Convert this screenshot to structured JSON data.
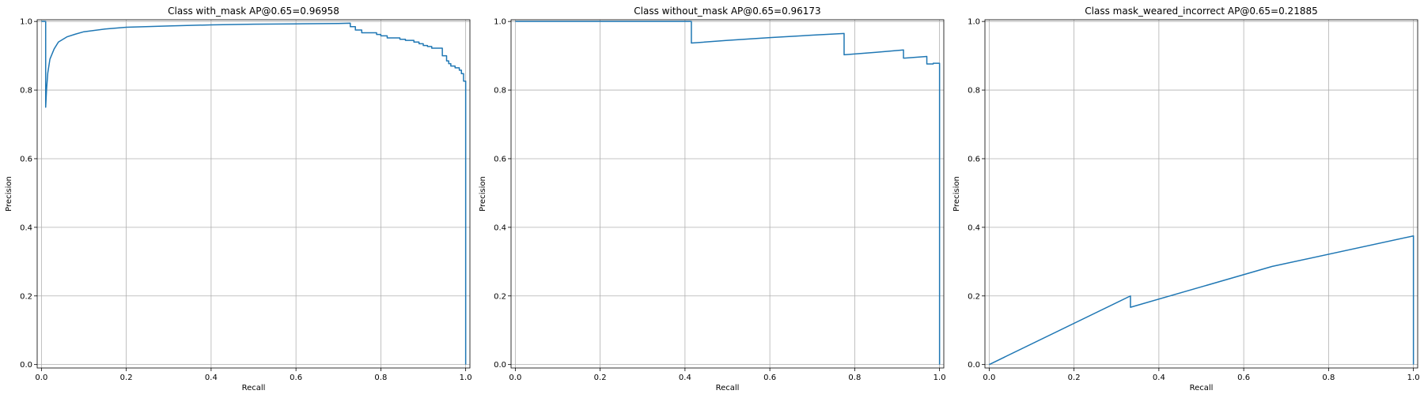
{
  "chart_data": [
    {
      "type": "line",
      "title": "Class with_mask AP@0.65=0.96958",
      "xlabel": "Recall",
      "ylabel": "Precision",
      "xlim": [
        -0.01,
        1.01
      ],
      "ylim": [
        -0.01,
        1.005
      ],
      "xticks": [
        "0.0",
        "0.2",
        "0.4",
        "0.6",
        "0.8",
        "1.0"
      ],
      "yticks": [
        "0.0",
        "0.2",
        "0.4",
        "0.6",
        "0.8",
        "1.0"
      ],
      "grid": true,
      "color": "#1f77b4",
      "series": [
        {
          "x": [
            0.0,
            0.01,
            0.01,
            0.012,
            0.015,
            0.02,
            0.03,
            0.04,
            0.06,
            0.08,
            0.1,
            0.15,
            0.2,
            0.3,
            0.4,
            0.5,
            0.6,
            0.7,
            0.728,
            0.728,
            0.74,
            0.74,
            0.755,
            0.755,
            0.79,
            0.79,
            0.8,
            0.8,
            0.815,
            0.815,
            0.845,
            0.845,
            0.858,
            0.858,
            0.878,
            0.878,
            0.89,
            0.89,
            0.9,
            0.9,
            0.91,
            0.91,
            0.92,
            0.92,
            0.945,
            0.945,
            0.955,
            0.955,
            0.96,
            0.96,
            0.965,
            0.965,
            0.975,
            0.975,
            0.985,
            0.985,
            0.99,
            0.99,
            0.995,
            0.995,
            1.0,
            1.0
          ],
          "y": [
            1.0,
            1.0,
            0.75,
            0.8,
            0.85,
            0.89,
            0.92,
            0.94,
            0.955,
            0.963,
            0.97,
            0.978,
            0.983,
            0.987,
            0.99,
            0.992,
            0.993,
            0.994,
            0.995,
            0.985,
            0.985,
            0.975,
            0.975,
            0.967,
            0.967,
            0.962,
            0.962,
            0.958,
            0.958,
            0.952,
            0.952,
            0.948,
            0.948,
            0.945,
            0.945,
            0.94,
            0.94,
            0.935,
            0.935,
            0.93,
            0.93,
            0.927,
            0.927,
            0.922,
            0.922,
            0.9,
            0.9,
            0.885,
            0.885,
            0.877,
            0.877,
            0.87,
            0.87,
            0.865,
            0.865,
            0.858,
            0.858,
            0.848,
            0.848,
            0.826,
            0.826,
            0.0
          ]
        }
      ]
    },
    {
      "type": "line",
      "title": "Class without_mask AP@0.65=0.96173",
      "xlabel": "Recall",
      "ylabel": "Precision",
      "xlim": [
        -0.01,
        1.01
      ],
      "ylim": [
        -0.01,
        1.005
      ],
      "xticks": [
        "0.0",
        "0.2",
        "0.4",
        "0.6",
        "0.8",
        "1.0"
      ],
      "yticks": [
        "0.0",
        "0.2",
        "0.4",
        "0.6",
        "0.8",
        "1.0"
      ],
      "grid": true,
      "color": "#1f77b4",
      "series": [
        {
          "x": [
            0.0,
            0.415,
            0.415,
            0.5,
            0.6,
            0.7,
            0.775,
            0.775,
            0.85,
            0.915,
            0.915,
            0.97,
            0.97,
            0.985,
            0.985,
            1.0,
            1.0
          ],
          "y": [
            1.0,
            1.0,
            0.937,
            0.945,
            0.953,
            0.96,
            0.965,
            0.903,
            0.91,
            0.917,
            0.893,
            0.898,
            0.876,
            0.876,
            0.878,
            0.878,
            0.0
          ]
        }
      ]
    },
    {
      "type": "line",
      "title": "Class mask_weared_incorrect AP@0.65=0.21885",
      "xlabel": "Recall",
      "ylabel": "Precision",
      "xlim": [
        -0.01,
        1.01
      ],
      "ylim": [
        -0.01,
        1.005
      ],
      "xticks": [
        "0.0",
        "0.2",
        "0.4",
        "0.6",
        "0.8",
        "1.0"
      ],
      "yticks": [
        "0.0",
        "0.2",
        "0.4",
        "0.6",
        "0.8",
        "1.0"
      ],
      "grid": true,
      "color": "#1f77b4",
      "series": [
        {
          "x": [
            0.0,
            0.333,
            0.333,
            0.667,
            1.0,
            1.0
          ],
          "y": [
            0.0,
            0.2,
            0.167,
            0.286,
            0.375,
            0.0
          ]
        }
      ]
    }
  ]
}
